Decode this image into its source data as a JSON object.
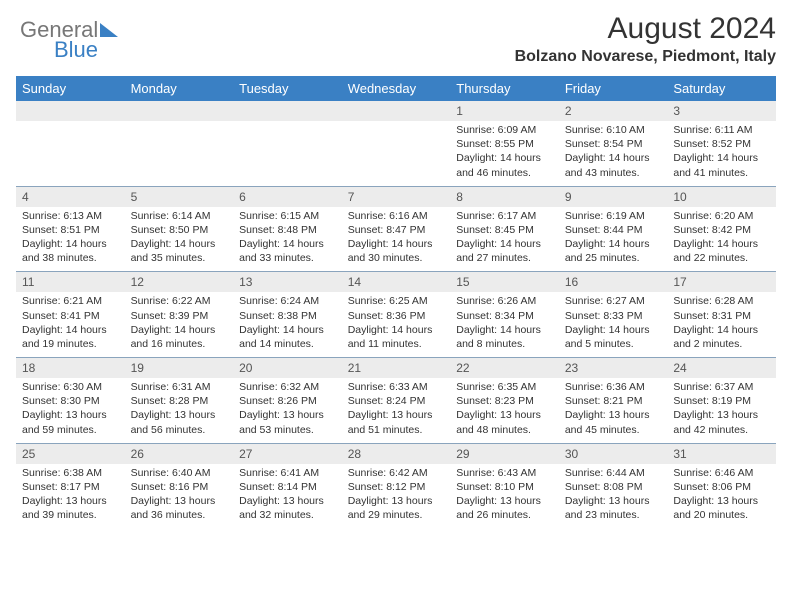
{
  "brand": {
    "part1": "General",
    "part2": "Blue"
  },
  "title": "August 2024",
  "location": "Bolzano Novarese, Piedmont, Italy",
  "colors": {
    "header_bg": "#3a80c4",
    "header_text": "#ffffff",
    "daynum_bg": "#ececec",
    "daynum_text": "#555555",
    "body_text": "#333333",
    "row_divider": "#8aa4bd",
    "page_bg": "#ffffff"
  },
  "typography": {
    "title_fontsize": 30,
    "location_fontsize": 16,
    "header_fontsize": 13,
    "daynum_fontsize": 12,
    "cell_fontsize": 10.5
  },
  "dayHeaders": [
    "Sunday",
    "Monday",
    "Tuesday",
    "Wednesday",
    "Thursday",
    "Friday",
    "Saturday"
  ],
  "weeks": [
    [
      null,
      null,
      null,
      null,
      {
        "n": "1",
        "sr": "6:09 AM",
        "ss": "8:55 PM",
        "dl": "14 hours and 46 minutes."
      },
      {
        "n": "2",
        "sr": "6:10 AM",
        "ss": "8:54 PM",
        "dl": "14 hours and 43 minutes."
      },
      {
        "n": "3",
        "sr": "6:11 AM",
        "ss": "8:52 PM",
        "dl": "14 hours and 41 minutes."
      }
    ],
    [
      {
        "n": "4",
        "sr": "6:13 AM",
        "ss": "8:51 PM",
        "dl": "14 hours and 38 minutes."
      },
      {
        "n": "5",
        "sr": "6:14 AM",
        "ss": "8:50 PM",
        "dl": "14 hours and 35 minutes."
      },
      {
        "n": "6",
        "sr": "6:15 AM",
        "ss": "8:48 PM",
        "dl": "14 hours and 33 minutes."
      },
      {
        "n": "7",
        "sr": "6:16 AM",
        "ss": "8:47 PM",
        "dl": "14 hours and 30 minutes."
      },
      {
        "n": "8",
        "sr": "6:17 AM",
        "ss": "8:45 PM",
        "dl": "14 hours and 27 minutes."
      },
      {
        "n": "9",
        "sr": "6:19 AM",
        "ss": "8:44 PM",
        "dl": "14 hours and 25 minutes."
      },
      {
        "n": "10",
        "sr": "6:20 AM",
        "ss": "8:42 PM",
        "dl": "14 hours and 22 minutes."
      }
    ],
    [
      {
        "n": "11",
        "sr": "6:21 AM",
        "ss": "8:41 PM",
        "dl": "14 hours and 19 minutes."
      },
      {
        "n": "12",
        "sr": "6:22 AM",
        "ss": "8:39 PM",
        "dl": "14 hours and 16 minutes."
      },
      {
        "n": "13",
        "sr": "6:24 AM",
        "ss": "8:38 PM",
        "dl": "14 hours and 14 minutes."
      },
      {
        "n": "14",
        "sr": "6:25 AM",
        "ss": "8:36 PM",
        "dl": "14 hours and 11 minutes."
      },
      {
        "n": "15",
        "sr": "6:26 AM",
        "ss": "8:34 PM",
        "dl": "14 hours and 8 minutes."
      },
      {
        "n": "16",
        "sr": "6:27 AM",
        "ss": "8:33 PM",
        "dl": "14 hours and 5 minutes."
      },
      {
        "n": "17",
        "sr": "6:28 AM",
        "ss": "8:31 PM",
        "dl": "14 hours and 2 minutes."
      }
    ],
    [
      {
        "n": "18",
        "sr": "6:30 AM",
        "ss": "8:30 PM",
        "dl": "13 hours and 59 minutes."
      },
      {
        "n": "19",
        "sr": "6:31 AM",
        "ss": "8:28 PM",
        "dl": "13 hours and 56 minutes."
      },
      {
        "n": "20",
        "sr": "6:32 AM",
        "ss": "8:26 PM",
        "dl": "13 hours and 53 minutes."
      },
      {
        "n": "21",
        "sr": "6:33 AM",
        "ss": "8:24 PM",
        "dl": "13 hours and 51 minutes."
      },
      {
        "n": "22",
        "sr": "6:35 AM",
        "ss": "8:23 PM",
        "dl": "13 hours and 48 minutes."
      },
      {
        "n": "23",
        "sr": "6:36 AM",
        "ss": "8:21 PM",
        "dl": "13 hours and 45 minutes."
      },
      {
        "n": "24",
        "sr": "6:37 AM",
        "ss": "8:19 PM",
        "dl": "13 hours and 42 minutes."
      }
    ],
    [
      {
        "n": "25",
        "sr": "6:38 AM",
        "ss": "8:17 PM",
        "dl": "13 hours and 39 minutes."
      },
      {
        "n": "26",
        "sr": "6:40 AM",
        "ss": "8:16 PM",
        "dl": "13 hours and 36 minutes."
      },
      {
        "n": "27",
        "sr": "6:41 AM",
        "ss": "8:14 PM",
        "dl": "13 hours and 32 minutes."
      },
      {
        "n": "28",
        "sr": "6:42 AM",
        "ss": "8:12 PM",
        "dl": "13 hours and 29 minutes."
      },
      {
        "n": "29",
        "sr": "6:43 AM",
        "ss": "8:10 PM",
        "dl": "13 hours and 26 minutes."
      },
      {
        "n": "30",
        "sr": "6:44 AM",
        "ss": "8:08 PM",
        "dl": "13 hours and 23 minutes."
      },
      {
        "n": "31",
        "sr": "6:46 AM",
        "ss": "8:06 PM",
        "dl": "13 hours and 20 minutes."
      }
    ]
  ],
  "labels": {
    "sunrise": "Sunrise: ",
    "sunset": "Sunset: ",
    "daylight": "Daylight: "
  }
}
